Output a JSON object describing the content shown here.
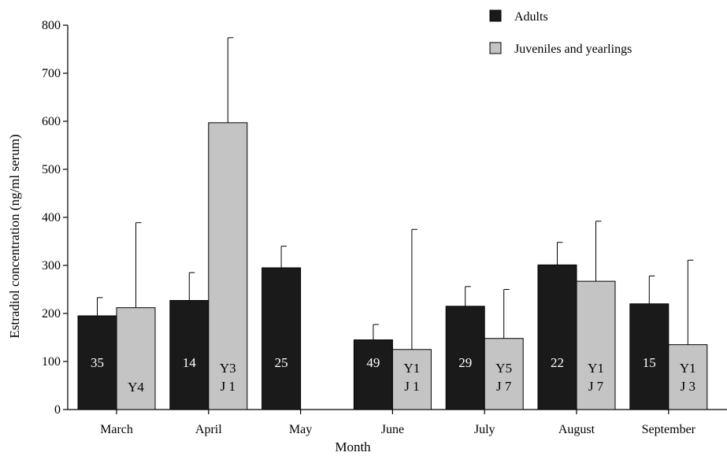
{
  "colors": {
    "adults": "#1a1a1a",
    "juveniles": "#c4c4c4",
    "axis": "#000000",
    "label_on_dark": "#ffffff",
    "label_on_light": "#000000"
  },
  "chart_data": {
    "type": "bar",
    "title": "",
    "xlabel": "Month",
    "ylabel": "Estradiol concentration (ng/ml serum)",
    "ylim": [
      0,
      800
    ],
    "yticks": [
      "0",
      "100",
      "200",
      "300",
      "400",
      "500",
      "600",
      "700",
      "800"
    ],
    "grid": false,
    "legend_position": "top-right",
    "categories": [
      "March",
      "April",
      "May",
      "June",
      "July",
      "August",
      "September"
    ],
    "series": [
      {
        "name": "Adults",
        "values": [
          195,
          227,
          295,
          145,
          215,
          301,
          220
        ],
        "errors": [
          38,
          58,
          45,
          32,
          41,
          47,
          58
        ],
        "labels": [
          [
            "35"
          ],
          [
            "14"
          ],
          [
            "25"
          ],
          [
            "49"
          ],
          [
            "29"
          ],
          [
            "22"
          ],
          [
            "15"
          ]
        ]
      },
      {
        "name": "Juveniles and yearlings",
        "values": [
          212,
          597,
          null,
          125,
          148,
          267,
          135
        ],
        "errors": [
          177,
          177,
          null,
          250,
          102,
          125,
          176
        ],
        "labels": [
          [
            "Y4"
          ],
          [
            "Y3",
            "J 1"
          ],
          [],
          [
            "Y1",
            "J 1"
          ],
          [
            "Y5",
            "J 7"
          ],
          [
            "Y1",
            "J 7"
          ],
          [
            "Y1",
            "J 3"
          ]
        ]
      }
    ]
  }
}
